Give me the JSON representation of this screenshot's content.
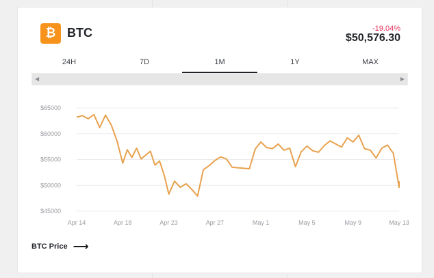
{
  "coin": {
    "symbol": "BTC",
    "logo_glyph": "₿",
    "logo_color": "#f7931a",
    "change": "-19.04%",
    "change_color": "#e8325a",
    "price": "$50,576.30"
  },
  "tabs": [
    "24H",
    "7D",
    "1M",
    "1Y",
    "MAX"
  ],
  "active_tab": "1M",
  "scrollbar": {
    "left_icon": "triangle-left",
    "right_icon": "triangle-right"
  },
  "footer": {
    "label": "BTC Price",
    "icon": "arrow-right-icon"
  },
  "chart_data": {
    "type": "line",
    "title": "",
    "ylim": [
      45000,
      65000
    ],
    "y_ticks": [
      45000,
      50000,
      55000,
      60000,
      65000
    ],
    "y_tick_labels": [
      "$45000",
      "$50000",
      "$55000",
      "$60000",
      "$65000"
    ],
    "x_tick_labels": [
      "Apr 14",
      "Apr 18",
      "Apr 23",
      "Apr 27",
      "May 1",
      "May 5",
      "May 9",
      "May 13"
    ],
    "line_color": "#e8a14d",
    "grid": true,
    "series": [
      {
        "x": [
          "Apr 14",
          "Apr 14",
          "Apr 15",
          "Apr 15",
          "Apr 16",
          "Apr 16",
          "Apr 17",
          "Apr 17",
          "Apr 18",
          "Apr 18",
          "Apr 19",
          "Apr 19",
          "Apr 20",
          "Apr 21",
          "Apr 21",
          "Apr 22",
          "Apr 22",
          "Apr 23",
          "Apr 23",
          "Apr 24",
          "Apr 24",
          "Apr 25",
          "Apr 25",
          "Apr 26",
          "Apr 26",
          "Apr 27",
          "Apr 27",
          "Apr 28",
          "Apr 28",
          "Apr 29",
          "Apr 30",
          "Apr 30",
          "May 1",
          "May 1",
          "May 2",
          "May 2",
          "May 3",
          "May 3",
          "May 4",
          "May 4",
          "May 5",
          "May 5",
          "May 6",
          "May 6",
          "May 7",
          "May 8",
          "May 8",
          "May 9",
          "May 9",
          "May 10",
          "May 10",
          "May 11",
          "May 11",
          "May 12",
          "May 12",
          "May 13",
          "May 13"
        ],
        "y": [
          63200,
          63500,
          62900,
          63700,
          61200,
          63600,
          61700,
          58600,
          54300,
          56900,
          55400,
          57200,
          55100,
          56600,
          53900,
          54700,
          52000,
          48300,
          50800,
          49600,
          50300,
          49200,
          47900,
          53000,
          53800,
          54800,
          55500,
          55100,
          53500,
          53400,
          53200,
          57000,
          58400,
          57300,
          57100,
          58000,
          56800,
          57200,
          53600,
          56500,
          57600,
          56700,
          56400,
          57700,
          58600,
          57400,
          59200,
          58400,
          59700,
          57100,
          56800,
          55300,
          57200,
          57800,
          56200,
          49600,
          50800
        ]
      }
    ]
  }
}
